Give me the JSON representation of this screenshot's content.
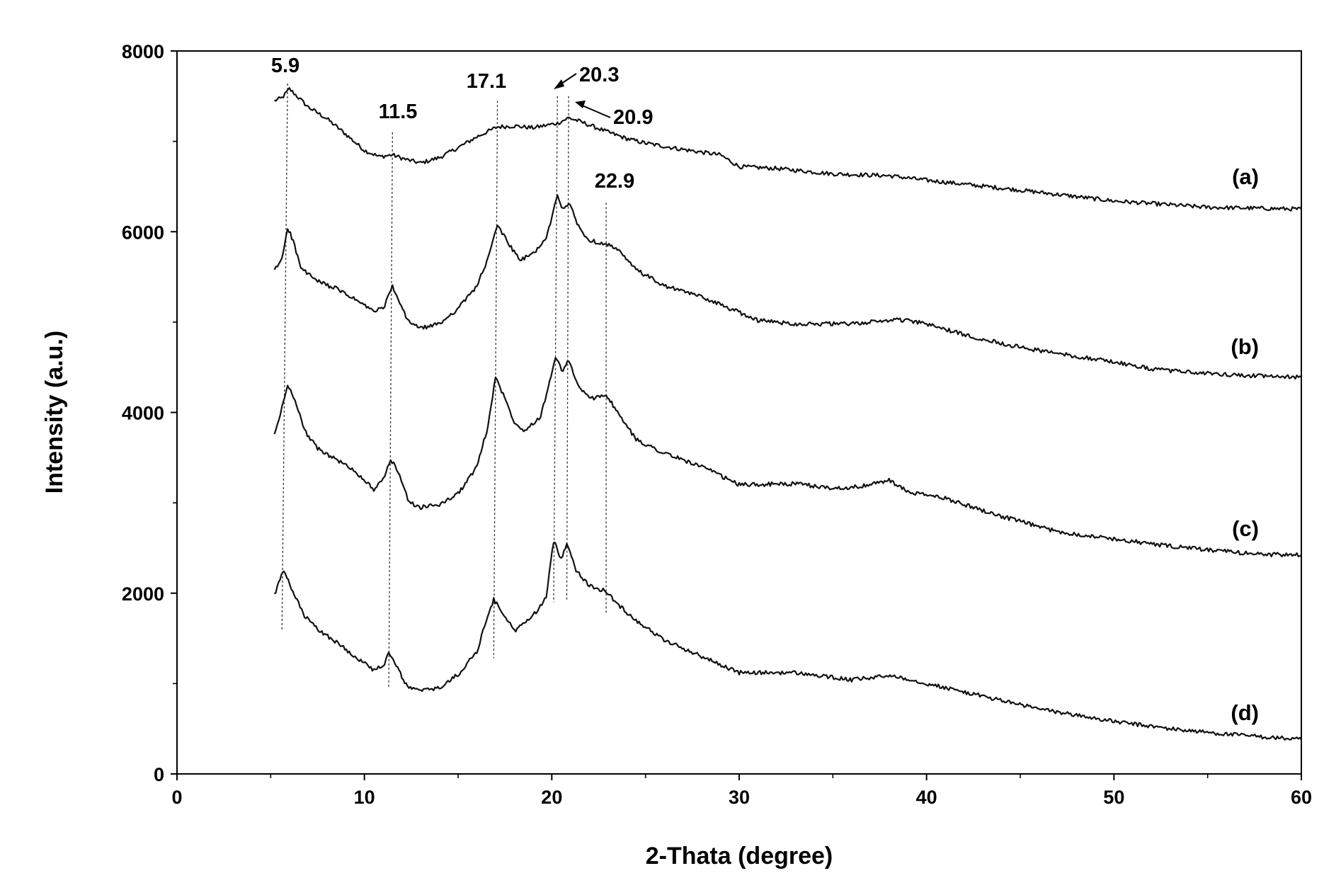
{
  "chart_data": {
    "type": "line",
    "xlabel": "2-Thata (degree)",
    "ylabel": "Intensity (a.u.)",
    "xlim": [
      0,
      60
    ],
    "ylim": [
      0,
      8000
    ],
    "x_ticks": [
      0,
      10,
      20,
      30,
      40,
      50,
      60
    ],
    "y_ticks": [
      0,
      2000,
      4000,
      6000,
      8000
    ],
    "grid": false,
    "legend": "none",
    "series": [
      {
        "name": "(a)",
        "points": [
          [
            5.2,
            7450
          ],
          [
            5.6,
            7480
          ],
          [
            6.0,
            7580
          ],
          [
            6.4,
            7500
          ],
          [
            7,
            7380
          ],
          [
            8,
            7250
          ],
          [
            9,
            7080
          ],
          [
            10,
            6900
          ],
          [
            10.8,
            6830
          ],
          [
            11.5,
            6850
          ],
          [
            12.2,
            6800
          ],
          [
            13,
            6760
          ],
          [
            14,
            6820
          ],
          [
            15,
            6930
          ],
          [
            16,
            7050
          ],
          [
            17.1,
            7160
          ],
          [
            18,
            7170
          ],
          [
            19,
            7150
          ],
          [
            20.3,
            7200
          ],
          [
            20.9,
            7260
          ],
          [
            21.5,
            7220
          ],
          [
            22.9,
            7110
          ],
          [
            24,
            7030
          ],
          [
            25,
            6980
          ],
          [
            27,
            6910
          ],
          [
            29,
            6850
          ],
          [
            30,
            6720
          ],
          [
            32,
            6700
          ],
          [
            35,
            6640
          ],
          [
            38,
            6620
          ],
          [
            40,
            6570
          ],
          [
            45,
            6460
          ],
          [
            50,
            6340
          ],
          [
            55,
            6270
          ],
          [
            60,
            6250
          ]
        ]
      },
      {
        "name": "(b)",
        "points": [
          [
            5.2,
            5570
          ],
          [
            5.6,
            5700
          ],
          [
            5.9,
            6050
          ],
          [
            6.2,
            5900
          ],
          [
            6.6,
            5600
          ],
          [
            7.5,
            5450
          ],
          [
            8.5,
            5370
          ],
          [
            9.5,
            5250
          ],
          [
            10.5,
            5120
          ],
          [
            11.0,
            5150
          ],
          [
            11.5,
            5390
          ],
          [
            11.8,
            5250
          ],
          [
            12.3,
            5020
          ],
          [
            13,
            4930
          ],
          [
            14,
            4980
          ],
          [
            15,
            5150
          ],
          [
            16,
            5400
          ],
          [
            16.6,
            5700
          ],
          [
            17.1,
            6080
          ],
          [
            17.6,
            5900
          ],
          [
            18.3,
            5680
          ],
          [
            19,
            5760
          ],
          [
            19.7,
            5920
          ],
          [
            20.3,
            6400
          ],
          [
            20.6,
            6250
          ],
          [
            20.9,
            6320
          ],
          [
            21.5,
            6030
          ],
          [
            22,
            5900
          ],
          [
            22.9,
            5870
          ],
          [
            23.5,
            5800
          ],
          [
            24.5,
            5580
          ],
          [
            26,
            5400
          ],
          [
            28,
            5280
          ],
          [
            29.5,
            5150
          ],
          [
            31,
            5020
          ],
          [
            33,
            4980
          ],
          [
            36,
            4980
          ],
          [
            38.5,
            5030
          ],
          [
            40,
            4980
          ],
          [
            42,
            4860
          ],
          [
            45,
            4720
          ],
          [
            48,
            4620
          ],
          [
            50,
            4560
          ],
          [
            52,
            4480
          ],
          [
            55,
            4430
          ],
          [
            58,
            4400
          ],
          [
            60,
            4390
          ]
        ]
      },
      {
        "name": "(c)",
        "points": [
          [
            5.2,
            3750
          ],
          [
            5.6,
            4050
          ],
          [
            5.9,
            4300
          ],
          [
            6.3,
            4150
          ],
          [
            6.8,
            3800
          ],
          [
            7.5,
            3600
          ],
          [
            8.5,
            3480
          ],
          [
            9.5,
            3350
          ],
          [
            10.5,
            3150
          ],
          [
            11.0,
            3250
          ],
          [
            11.4,
            3480
          ],
          [
            11.8,
            3350
          ],
          [
            12.4,
            3000
          ],
          [
            13,
            2950
          ],
          [
            14,
            2980
          ],
          [
            15,
            3100
          ],
          [
            16,
            3400
          ],
          [
            16.6,
            3850
          ],
          [
            17.0,
            4400
          ],
          [
            17.4,
            4200
          ],
          [
            18.0,
            3900
          ],
          [
            18.5,
            3800
          ],
          [
            19.4,
            3950
          ],
          [
            20.2,
            4600
          ],
          [
            20.6,
            4450
          ],
          [
            20.9,
            4580
          ],
          [
            21.4,
            4300
          ],
          [
            22,
            4150
          ],
          [
            22.9,
            4200
          ],
          [
            23.5,
            4000
          ],
          [
            24.5,
            3700
          ],
          [
            26,
            3550
          ],
          [
            28,
            3400
          ],
          [
            30,
            3200
          ],
          [
            33,
            3210
          ],
          [
            35,
            3160
          ],
          [
            36.5,
            3180
          ],
          [
            38,
            3250
          ],
          [
            39,
            3120
          ],
          [
            41,
            3050
          ],
          [
            44,
            2850
          ],
          [
            47,
            2680
          ],
          [
            50,
            2600
          ],
          [
            53,
            2520
          ],
          [
            56,
            2460
          ],
          [
            58,
            2430
          ],
          [
            60,
            2420
          ]
        ]
      },
      {
        "name": "(d)",
        "points": [
          [
            5.2,
            1980
          ],
          [
            5.5,
            2150
          ],
          [
            5.7,
            2250
          ],
          [
            6.1,
            2050
          ],
          [
            6.8,
            1750
          ],
          [
            7.5,
            1600
          ],
          [
            8.5,
            1460
          ],
          [
            9.5,
            1300
          ],
          [
            10.5,
            1150
          ],
          [
            11.0,
            1190
          ],
          [
            11.3,
            1330
          ],
          [
            11.7,
            1200
          ],
          [
            12.3,
            960
          ],
          [
            13,
            920
          ],
          [
            14,
            950
          ],
          [
            15,
            1100
          ],
          [
            16,
            1350
          ],
          [
            16.5,
            1700
          ],
          [
            16.9,
            1930
          ],
          [
            17.4,
            1780
          ],
          [
            18,
            1580
          ],
          [
            19,
            1750
          ],
          [
            19.7,
            1950
          ],
          [
            20.1,
            2580
          ],
          [
            20.5,
            2380
          ],
          [
            20.8,
            2560
          ],
          [
            21.3,
            2260
          ],
          [
            22,
            2080
          ],
          [
            22.9,
            2020
          ],
          [
            23.5,
            1880
          ],
          [
            24.5,
            1700
          ],
          [
            26,
            1480
          ],
          [
            28,
            1300
          ],
          [
            30,
            1120
          ],
          [
            33,
            1120
          ],
          [
            36,
            1040
          ],
          [
            38.2,
            1090
          ],
          [
            40,
            1000
          ],
          [
            43,
            860
          ],
          [
            46,
            720
          ],
          [
            50,
            580
          ],
          [
            53,
            500
          ],
          [
            56,
            440
          ],
          [
            58,
            410
          ],
          [
            60,
            380
          ]
        ]
      }
    ],
    "annotations": [
      "5.9",
      "11.5",
      "17.1",
      "20.3",
      "20.9",
      "22.9"
    ],
    "guide_lines": [
      {
        "x_top": 5.9,
        "x_bottom": 5.6,
        "y_top": 7640,
        "y_bottom": 1580
      },
      {
        "x_top": 11.5,
        "x_bottom": 11.3,
        "y_top": 7100,
        "y_bottom": 950
      },
      {
        "x_top": 17.1,
        "x_bottom": 16.9,
        "y_top": 7450,
        "y_bottom": 1280
      },
      {
        "x_top": 20.3,
        "x_bottom": 20.1,
        "y_top": 7500,
        "y_bottom": 1900
      },
      {
        "x_top": 20.9,
        "x_bottom": 20.8,
        "y_top": 7500,
        "y_bottom": 1920
      },
      {
        "x_top": 22.9,
        "x_bottom": 22.9,
        "y_top": 6320,
        "y_bottom": 1780
      }
    ]
  }
}
